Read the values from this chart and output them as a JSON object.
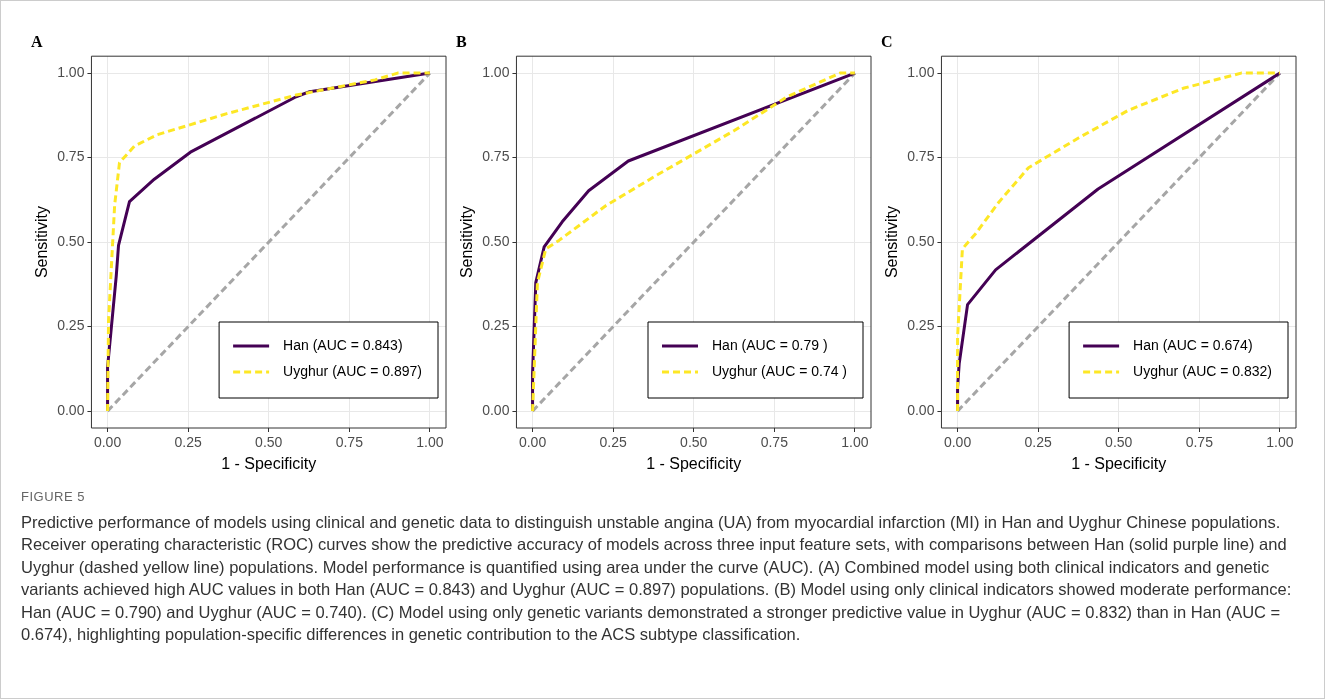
{
  "chart_data": [
    {
      "type": "line",
      "title": "A",
      "xlabel": "1 - Specificity",
      "ylabel": "Sensitivity",
      "xlim": [
        -0.05,
        1.05
      ],
      "ylim": [
        -0.05,
        1.05
      ],
      "xticks": [
        {
          "value": 0,
          "label": "0.00"
        },
        {
          "value": 0.25,
          "label": "0.25"
        },
        {
          "value": 0.5,
          "label": "0.50"
        },
        {
          "value": 0.75,
          "label": "0.75"
        },
        {
          "value": 1,
          "label": "1.00"
        }
      ],
      "yticks": [
        {
          "value": 0,
          "label": "0.00"
        },
        {
          "value": 0.25,
          "label": "0.25"
        },
        {
          "value": 0.5,
          "label": "0.50"
        },
        {
          "value": 0.75,
          "label": "0.75"
        },
        {
          "value": 1,
          "label": "1.00"
        }
      ],
      "grid": true,
      "legend": "bottom right",
      "marker": "none",
      "series": [
        {
          "x": [
            0,
            1
          ],
          "values": [
            0,
            1
          ],
          "color": "#a6a6a6",
          "line_style": "dashed"
        },
        {
          "name": "Han (AUC = 0.843)",
          "color": "#440154",
          "line_style": "solid",
          "x": [
            0,
            0,
            0.027,
            0.034,
            0.068,
            0.145,
            0.257,
            0.585,
            0.627,
            1
          ],
          "values": [
            0,
            0.13,
            0.4,
            0.49,
            0.62,
            0.686,
            0.766,
            0.93,
            0.945,
            1
          ]
        },
        {
          "name": "Uyghur (AUC = 0.897)",
          "color": "#fde725",
          "line_style": "dashed",
          "x": [
            0,
            0.003,
            0.022,
            0.037,
            0.083,
            0.155,
            0.37,
            0.585,
            0.83,
            0.9,
            1
          ],
          "values": [
            0,
            0.267,
            0.61,
            0.735,
            0.784,
            0.818,
            0.88,
            0.935,
            0.98,
            1,
            1
          ]
        }
      ],
      "annotations": [
        "FIGURE 5",
        "Predictive performance of models using clinical and genetic data to distinguish unstable angina (UA) from myocardial infarction (MI) in Han and Uyghur Chinese populations. Receiver operating characteristic (ROC) curves show the predictive accuracy of models across three input feature sets, with comparisons between Han (solid purple line) and Uyghur (dashed yellow line) populations. Model performance is quantified using area under the curve (AUC). (A) Combined model using both clinical indicators and genetic variants achieved high AUC values in both Han (AUC = 0.843) and Uyghur (AUC = 0.897) populations. (B) Model using only clinical indicators showed moderate performance: Han (AUC = 0.790) and Uyghur (AUC = 0.740). (C) Model using only genetic variants demonstrated a stronger predictive value in Uyghur (AUC = 0.832) than in Han (AUC = 0.674), highlighting population-specific differences in genetic contribution to the ACS subtype classification."
      ]
    },
    {
      "type": "line",
      "title": "B",
      "xlabel": "1 - Specificity",
      "ylabel": "Sensitivity",
      "xlim": [
        -0.05,
        1.05
      ],
      "ylim": [
        -0.05,
        1.05
      ],
      "xticks": [
        {
          "value": 0,
          "label": "0.00"
        },
        {
          "value": 0.25,
          "label": "0.25"
        },
        {
          "value": 0.5,
          "label": "0.50"
        },
        {
          "value": 0.75,
          "label": "0.75"
        },
        {
          "value": 1,
          "label": "1.00"
        }
      ],
      "yticks": [
        {
          "value": 0,
          "label": "0.00"
        },
        {
          "value": 0.25,
          "label": "0.25"
        },
        {
          "value": 0.5,
          "label": "0.50"
        },
        {
          "value": 0.75,
          "label": "0.75"
        },
        {
          "value": 1,
          "label": "1.00"
        }
      ],
      "grid": true,
      "legend": "bottom right",
      "marker": "none",
      "series": [
        {
          "x": [
            0,
            1
          ],
          "values": [
            0,
            1
          ],
          "color": "#a6a6a6",
          "line_style": "dashed"
        },
        {
          "name": "Han (AUC = 0.79 )",
          "color": "#440154",
          "line_style": "solid",
          "x": [
            0,
            0,
            0.01,
            0.036,
            0.092,
            0.174,
            0.297,
            1
          ],
          "values": [
            0,
            0.11,
            0.38,
            0.486,
            0.56,
            0.652,
            0.74,
            1
          ]
        },
        {
          "name": "Uyghur (AUC = 0.74 )",
          "color": "#fde725",
          "line_style": "dashed",
          "x": [
            0,
            0.015,
            0.041,
            0.082,
            0.226,
            0.38,
            0.626,
            0.79,
            0.954,
            1
          ],
          "values": [
            0,
            0.38,
            0.48,
            0.505,
            0.607,
            0.695,
            0.83,
            0.93,
            1,
            1
          ]
        }
      ]
    },
    {
      "type": "line",
      "title": "C",
      "xlabel": "1 - Specificity",
      "ylabel": "Sensitivity",
      "xlim": [
        -0.05,
        1.05
      ],
      "ylim": [
        -0.05,
        1.05
      ],
      "xticks": [
        {
          "value": 0,
          "label": "0.00"
        },
        {
          "value": 0.25,
          "label": "0.25"
        },
        {
          "value": 0.5,
          "label": "0.50"
        },
        {
          "value": 0.75,
          "label": "0.75"
        },
        {
          "value": 1,
          "label": "1.00"
        }
      ],
      "yticks": [
        {
          "value": 0,
          "label": "0.00"
        },
        {
          "value": 0.25,
          "label": "0.25"
        },
        {
          "value": 0.5,
          "label": "0.50"
        },
        {
          "value": 0.75,
          "label": "0.75"
        },
        {
          "value": 1,
          "label": "1.00"
        }
      ],
      "grid": true,
      "legend": "bottom right",
      "marker": "none",
      "series": [
        {
          "x": [
            0,
            1
          ],
          "values": [
            0,
            1
          ],
          "color": "#a6a6a6",
          "line_style": "dashed"
        },
        {
          "name": "Han (AUC = 0.674)",
          "color": "#440154",
          "line_style": "solid",
          "x": [
            0,
            0,
            0.005,
            0.031,
            0.118,
            0.436,
            1
          ],
          "values": [
            0,
            0.07,
            0.14,
            0.315,
            0.418,
            0.657,
            1
          ]
        },
        {
          "name": "Uyghur (AUC = 0.832)",
          "color": "#fde725",
          "line_style": "dashed",
          "x": [
            0,
            0,
            0.015,
            0.056,
            0.128,
            0.22,
            0.375,
            0.53,
            0.7,
            0.88,
            1
          ],
          "values": [
            0,
            0.22,
            0.48,
            0.525,
            0.618,
            0.72,
            0.808,
            0.89,
            0.955,
            1,
            1
          ]
        }
      ]
    }
  ]
}
